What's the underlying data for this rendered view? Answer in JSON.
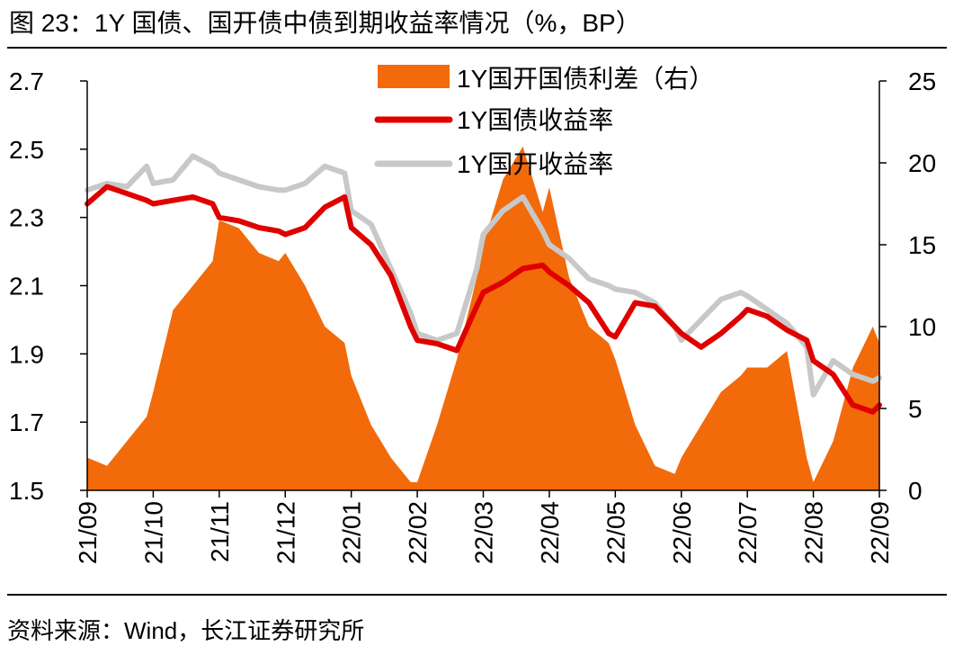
{
  "header": {
    "title": "图  23：1Y 国债、国开债中债到期收益率情况（%，BP）"
  },
  "footer": {
    "source": "资料来源：Wind，长江证券研究所"
  },
  "chart_data": {
    "type": "area+line",
    "title": "图  23：1Y 国债、国开债中债到期收益率情况（%，BP）",
    "xlabel": "",
    "ylabel_left": "",
    "ylabel_right": "",
    "x_tick_labels": [
      "21/09",
      "21/10",
      "21/11",
      "21/12",
      "22/01",
      "22/02",
      "22/03",
      "22/04",
      "22/05",
      "22/06",
      "22/07",
      "22/08",
      "22/09"
    ],
    "y_left": {
      "min": 1.5,
      "max": 2.7,
      "ticks": [
        "1.5",
        "1.7",
        "1.9",
        "2.1",
        "2.3",
        "2.5",
        "2.7"
      ]
    },
    "y_right": {
      "min": 0,
      "max": 25,
      "ticks": [
        "0",
        "5",
        "10",
        "15",
        "20",
        "25"
      ]
    },
    "legend": {
      "placement": "top-center",
      "items": [
        "1Y国开国债利差（右）",
        "1Y国债收益率",
        "1Y国开收益率"
      ]
    },
    "colors": {
      "spread": "#F26A0A",
      "gov": "#E00000",
      "cdb": "#C8C8C8"
    },
    "x_months": [
      0,
      0.3,
      0.6,
      0.9,
      1.0,
      1.3,
      1.6,
      1.9,
      2.0,
      2.3,
      2.6,
      2.9,
      3.0,
      3.3,
      3.6,
      3.9,
      4.0,
      4.3,
      4.6,
      4.9,
      5.0,
      5.3,
      5.6,
      5.9,
      6.0,
      6.3,
      6.6,
      6.9,
      7.0,
      7.3,
      7.6,
      7.9,
      8.0,
      8.3,
      8.6,
      8.9,
      9.0,
      9.3,
      9.6,
      9.9,
      10.0,
      10.3,
      10.6,
      10.9,
      11.0,
      11.3,
      11.6,
      11.9,
      12.0
    ],
    "series": [
      {
        "name": "1Y国开国债利差（右）",
        "axis": "right",
        "values": [
          2.0,
          1.5,
          3.0,
          4.5,
          6.0,
          11.0,
          12.5,
          14.0,
          16.5,
          16.0,
          14.5,
          14.0,
          14.5,
          12.5,
          10.0,
          9.0,
          7.0,
          4.0,
          2.0,
          0.5,
          0.5,
          4.0,
          8.0,
          13.0,
          15.0,
          19.0,
          21.0,
          17.0,
          18.5,
          13.0,
          10.0,
          9.0,
          8.0,
          4.0,
          1.5,
          1.0,
          2.0,
          4.0,
          6.0,
          7.0,
          7.5,
          7.5,
          8.5,
          2.0,
          0.5,
          3.0,
          7.5,
          10.0,
          9.0
        ]
      },
      {
        "name": "1Y国债收益率",
        "axis": "left",
        "values": [
          2.34,
          2.39,
          2.37,
          2.35,
          2.34,
          2.35,
          2.36,
          2.34,
          2.3,
          2.29,
          2.27,
          2.26,
          2.25,
          2.27,
          2.33,
          2.36,
          2.27,
          2.22,
          2.13,
          1.98,
          1.94,
          1.93,
          1.91,
          2.04,
          2.08,
          2.11,
          2.15,
          2.16,
          2.14,
          2.1,
          2.05,
          1.96,
          1.95,
          2.05,
          2.04,
          1.98,
          1.96,
          1.92,
          1.96,
          2.01,
          2.03,
          2.01,
          1.97,
          1.94,
          1.88,
          1.84,
          1.75,
          1.73,
          1.75
        ]
      },
      {
        "name": "1Y国开收益率",
        "axis": "left",
        "values": [
          2.38,
          2.4,
          2.39,
          2.45,
          2.4,
          2.41,
          2.48,
          2.45,
          2.43,
          2.41,
          2.39,
          2.38,
          2.38,
          2.4,
          2.45,
          2.43,
          2.32,
          2.28,
          2.15,
          2.02,
          1.96,
          1.94,
          1.96,
          2.15,
          2.25,
          2.32,
          2.36,
          2.26,
          2.22,
          2.18,
          2.12,
          2.1,
          2.09,
          2.08,
          2.05,
          1.98,
          1.94,
          2.0,
          2.06,
          2.08,
          2.07,
          2.03,
          1.99,
          1.92,
          1.78,
          1.88,
          1.84,
          1.82,
          1.83
        ]
      }
    ]
  }
}
